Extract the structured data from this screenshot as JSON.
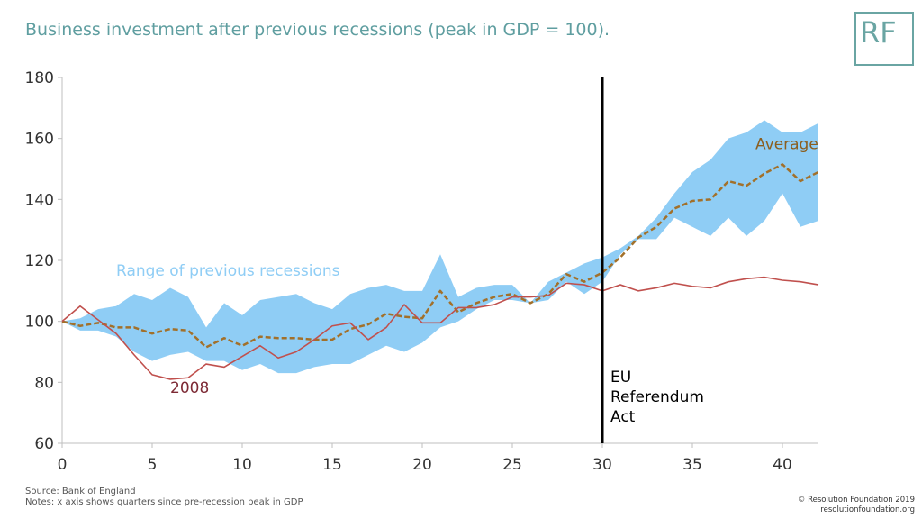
{
  "header": {
    "title": "Business investment after previous recessions (peak in GDP = 100).",
    "logo": "RF"
  },
  "footer": {
    "source": "Source: Bank of England",
    "notes": "Notes: x axis shows quarters since pre-recession peak in GDP",
    "credit1": "© Resolution Foundation 2019",
    "credit2": "resolutionfoundation.org"
  },
  "chart_data": {
    "type": "line",
    "title": "Business investment after previous recessions (peak in GDP = 100).",
    "xlabel": "",
    "ylabel": "",
    "xlim": [
      0,
      42
    ],
    "ylim": [
      60,
      180
    ],
    "xticks": [
      0,
      5,
      10,
      15,
      20,
      25,
      30,
      35,
      40
    ],
    "yticks": [
      60,
      80,
      100,
      120,
      140,
      160,
      180
    ],
    "grid": false,
    "x": [
      0,
      1,
      2,
      3,
      4,
      5,
      6,
      7,
      8,
      9,
      10,
      11,
      12,
      13,
      14,
      15,
      16,
      17,
      18,
      19,
      20,
      21,
      22,
      23,
      24,
      25,
      26,
      27,
      28,
      29,
      30,
      31,
      32,
      33,
      34,
      35,
      36,
      37,
      38,
      39,
      40,
      41,
      42
    ],
    "range": {
      "name": "Range of previous recessions",
      "color": "#8fcdf5",
      "upper": [
        100,
        101,
        104,
        105,
        109,
        107,
        111,
        108,
        98,
        106,
        102,
        107,
        108,
        109,
        106,
        104,
        109,
        111,
        112,
        110,
        110,
        122,
        108,
        111,
        112,
        112,
        106,
        113,
        116,
        119,
        121,
        124,
        128,
        134,
        142,
        149,
        153,
        160,
        162,
        166,
        162,
        162,
        165
      ],
      "lower": [
        100,
        97,
        97,
        95,
        90,
        87,
        89,
        90,
        87,
        87,
        84,
        86,
        83,
        83,
        85,
        86,
        86,
        89,
        92,
        90,
        93,
        98,
        100,
        104,
        107,
        107,
        106,
        107,
        113,
        109,
        113,
        122,
        127,
        127,
        134,
        131,
        128,
        134,
        128,
        133,
        142,
        131,
        133
      ]
    },
    "series": [
      {
        "name": "Average",
        "color": "#a2702a",
        "style": "dashed",
        "values": [
          100,
          98.5,
          99.5,
          98,
          98,
          96,
          97.5,
          97,
          91.5,
          94.5,
          92,
          95,
          94.5,
          94.5,
          94,
          94,
          97.5,
          99,
          102.5,
          101.5,
          101,
          110,
          103,
          106,
          108,
          109,
          106,
          109,
          115.5,
          113,
          116,
          121,
          127.5,
          131,
          137,
          139.5,
          140,
          146,
          144.5,
          148.5,
          151.5,
          146,
          149
        ]
      },
      {
        "name": "2008",
        "color": "#c0504d",
        "style": "solid",
        "values": [
          100,
          105,
          100.5,
          96,
          89,
          82.5,
          81,
          81.5,
          86,
          85,
          88.5,
          92,
          88,
          90,
          94,
          98.5,
          99.5,
          94,
          98,
          105.5,
          99.5,
          99.5,
          104.5,
          104.5,
          105.5,
          108,
          108,
          108.5,
          112.5,
          112,
          110,
          112,
          110,
          111,
          112.5,
          111.5,
          111,
          113,
          114,
          114.5,
          113.5,
          113,
          112
        ]
      }
    ],
    "annotations": [
      {
        "text": "Range of previous recessions",
        "x": 3,
        "y": 115,
        "color": "#8fcdf5"
      },
      {
        "text": "Average",
        "x": 38.5,
        "y": 156.5,
        "color": "#8b5e1f"
      },
      {
        "text": "2008",
        "x": 6,
        "y": 76.5,
        "color": "#7d2a35"
      }
    ],
    "vline": {
      "x": 30,
      "y_top": 180,
      "color": "#000000",
      "label": [
        "EU",
        "Referendum",
        "Act"
      ]
    }
  }
}
